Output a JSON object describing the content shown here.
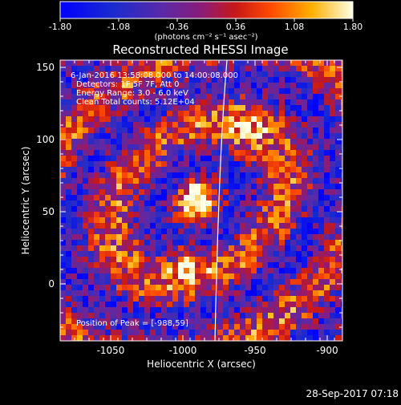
{
  "colorbar": {
    "ticks": [
      "-1.80",
      "-1.08",
      "-0.36",
      "0.36",
      "1.08",
      "1.80"
    ],
    "units_html": "(photons cm⁻² s⁻¹ asec⁻²)"
  },
  "image": {
    "title": "Reconstructed RHESSI Image",
    "annotations": [
      "6-Jan-2016 13:58:08.000 to 14:00:08.000",
      "Detectors: 1F 5F 7F, Att 0",
      "Energy Range: 3.0 - 6.0 keV",
      "Clean    Total counts: 5.12E+04"
    ],
    "peak_label": "Position of Peak = [-988,59]"
  },
  "axes": {
    "x_label": "Heliocentric X (arcsec)",
    "y_label": "Heliocentric Y (arcsec)",
    "x_ticks": [
      "-1050",
      "-1000",
      "-950",
      "-900"
    ],
    "y_ticks": [
      "0",
      "50",
      "100",
      "150"
    ]
  },
  "footer": {
    "timestamp": "28-Sep-2017 07:18"
  }
}
